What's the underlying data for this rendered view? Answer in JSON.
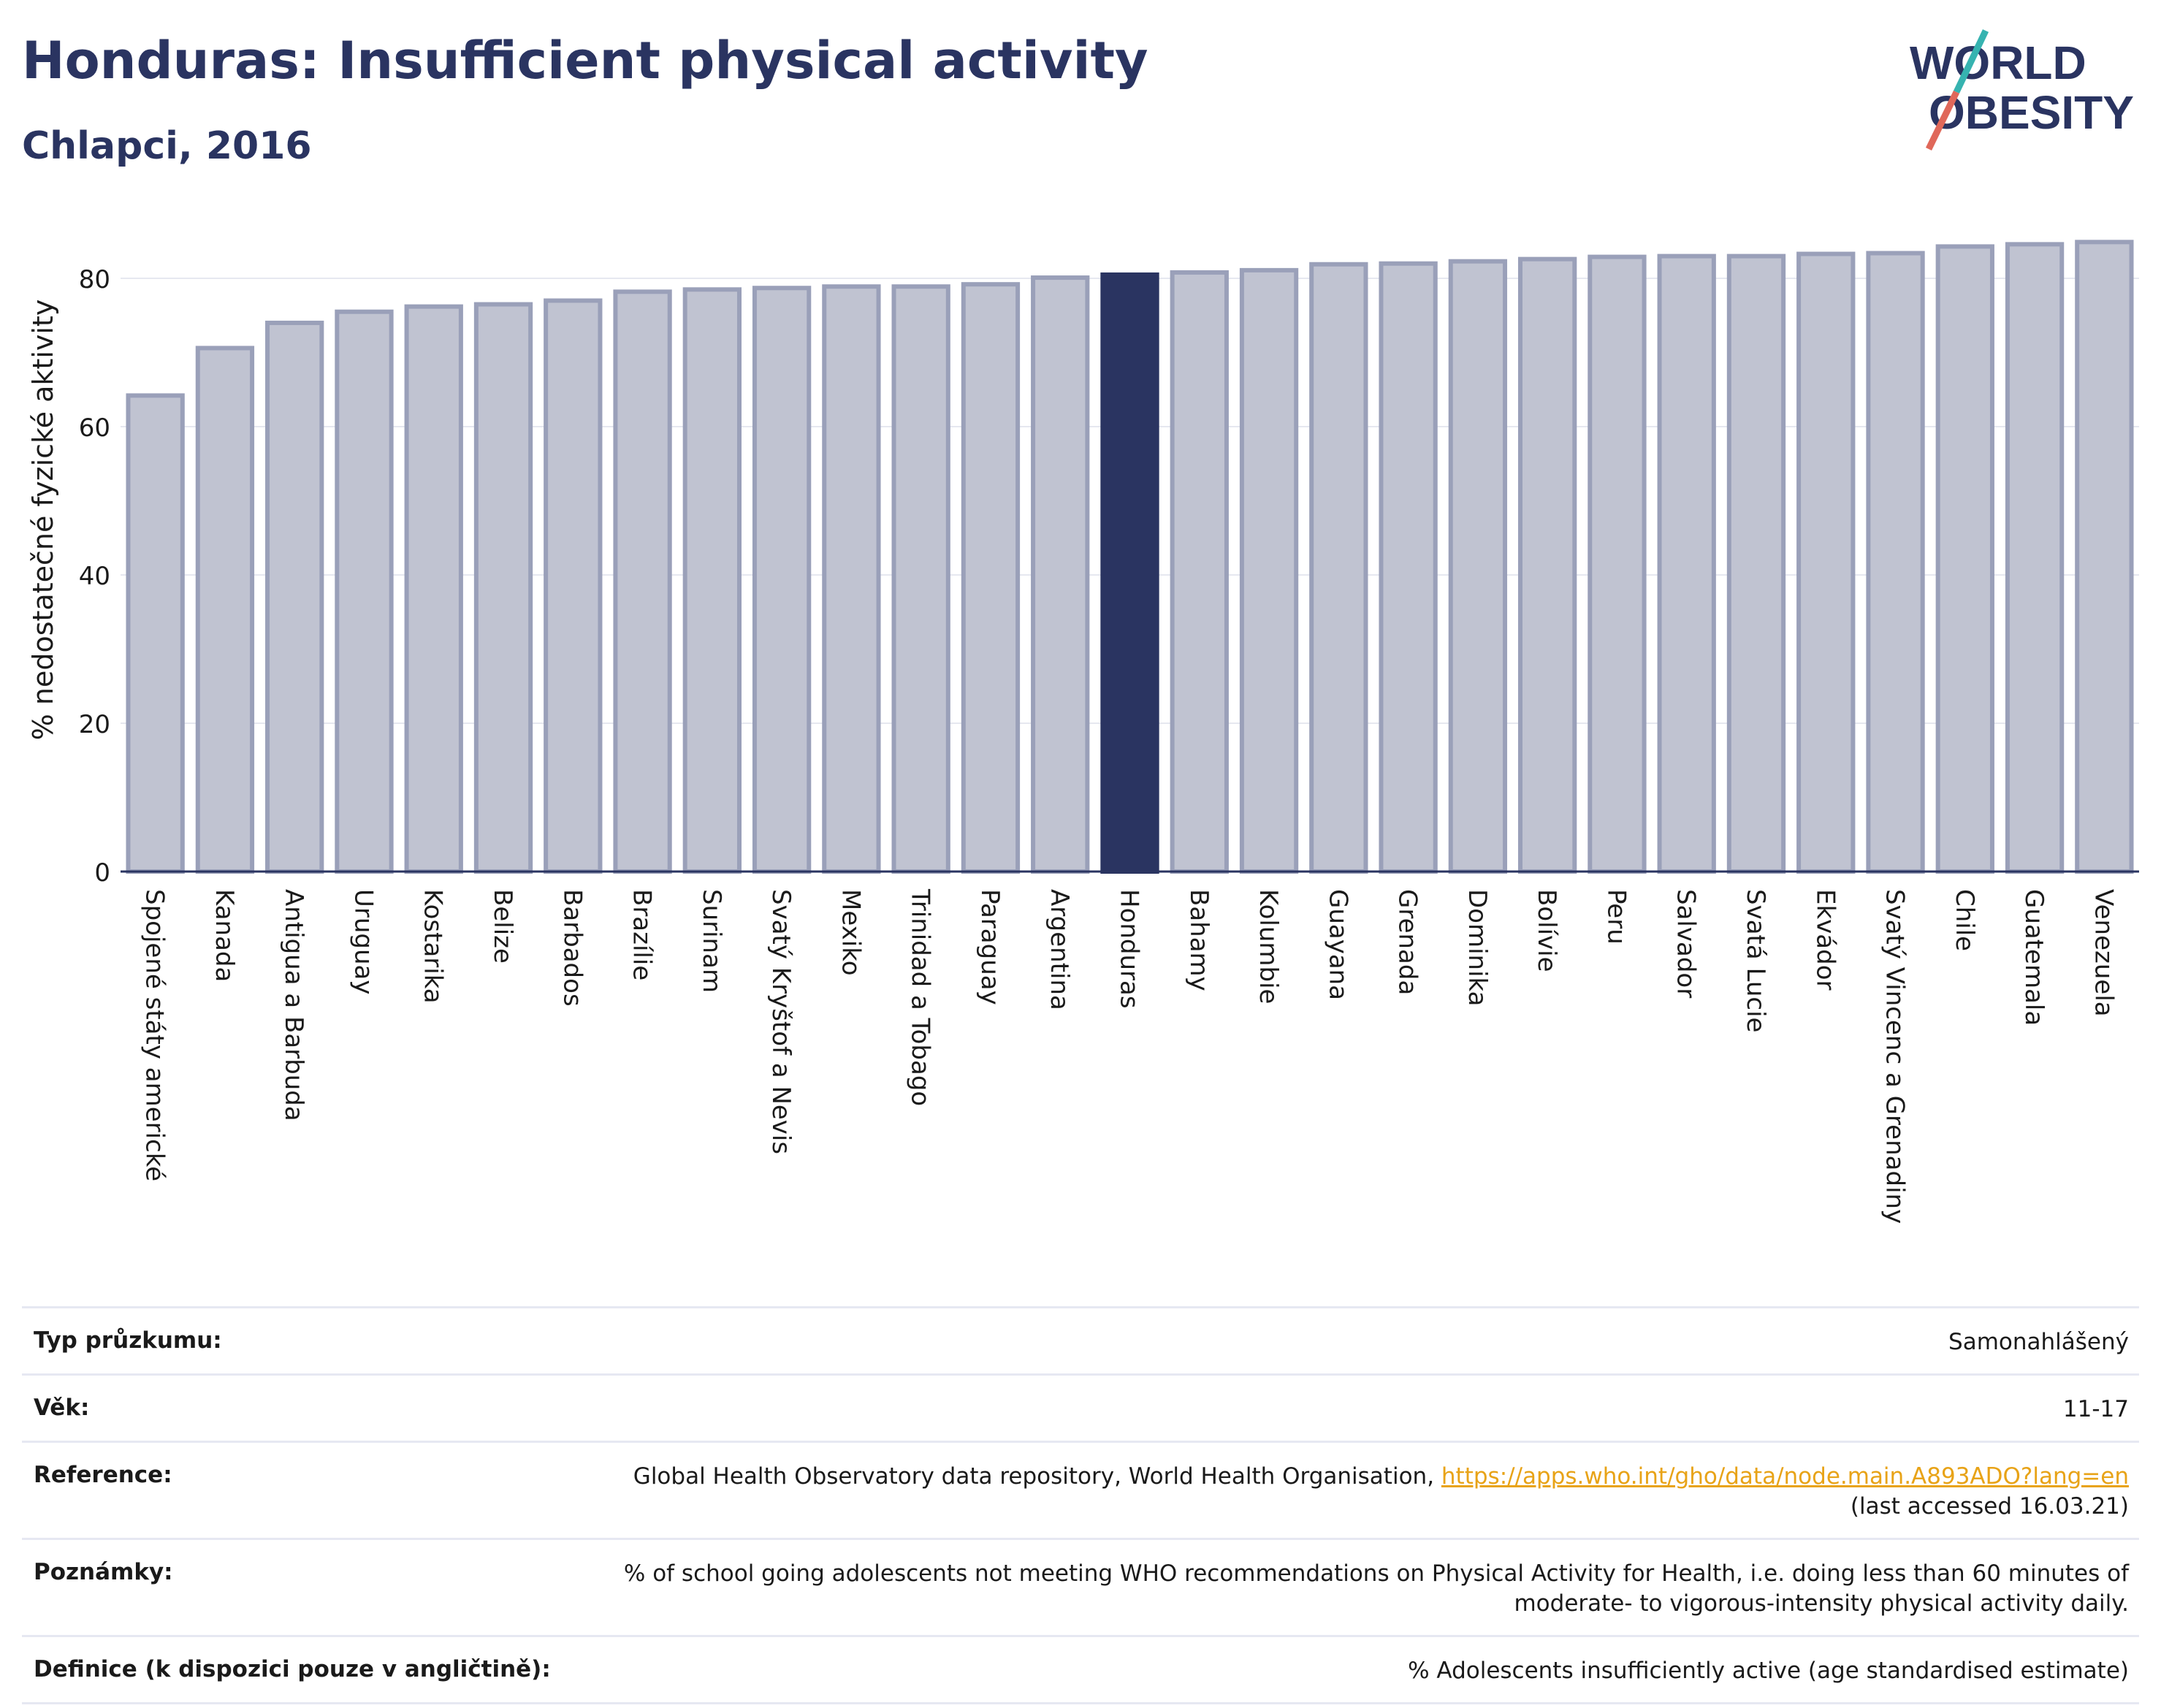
{
  "header": {
    "title": "Honduras: Insufficient physical activity",
    "subtitle": "Chlapci, 2016"
  },
  "logo": {
    "line1": "WORLD",
    "line2": "OBESITY"
  },
  "chart_data": {
    "type": "bar",
    "ylabel": "% nedostatečné fyzické aktivity",
    "ylim": [
      0,
      87
    ],
    "yticks": [
      0,
      20,
      40,
      60,
      80
    ],
    "grid": true,
    "highlight": "Honduras",
    "colors": {
      "bar": "#c0c3d1",
      "bar_border": "#9aa0b9",
      "highlight": "#2a3461"
    },
    "categories": [
      "Spojené státy americké",
      "Kanada",
      "Antigua a Barbuda",
      "Uruguay",
      "Kostarika",
      "Belize",
      "Barbados",
      "Brazílie",
      "Surinam",
      "Svatý Kryštof a Nevis",
      "Mexiko",
      "Trinidad a Tobago",
      "Paraguay",
      "Argentina",
      "Honduras",
      "Bahamy",
      "Kolumbie",
      "Guayana",
      "Grenada",
      "Dominika",
      "Bolívie",
      "Peru",
      "Salvador",
      "Svatá Lucie",
      "Ekvádor",
      "Svatý Vincenc a Grenadiny",
      "Chile",
      "Guatemala",
      "Venezuela"
    ],
    "values": [
      64.2,
      70.6,
      74.0,
      75.5,
      76.2,
      76.5,
      77.0,
      78.2,
      78.5,
      78.7,
      78.9,
      78.9,
      79.2,
      80.1,
      80.5,
      80.8,
      81.1,
      81.9,
      82.0,
      82.3,
      82.6,
      82.9,
      83.0,
      83.0,
      83.3,
      83.4,
      84.3,
      84.6,
      84.9
    ]
  },
  "info": {
    "survey_label": "Typ průzkumu:",
    "survey_value": "Samonahlášený",
    "age_label": "Věk:",
    "age_value": "11-17",
    "ref_label": "Reference:",
    "ref_text": "Global Health Observatory data repository, World Health Organisation,",
    "ref_link": "https://apps.who.int/gho/data/node.main.A893ADO?lang=en",
    "ref_accessed": "(last accessed 16.03.21)",
    "notes_label": "Poznámky:",
    "notes_line1": "% of school going adolescents not meeting WHO recommendations on Physical Activity for Health, i.e. doing less than 60 minutes of",
    "notes_line2": "moderate- to vigorous-intensity physical activity daily.",
    "def_label": "Definice (k dispozici pouze v angličtině):",
    "def_value": "% Adolescents insufficiently active (age standardised estimate)"
  }
}
